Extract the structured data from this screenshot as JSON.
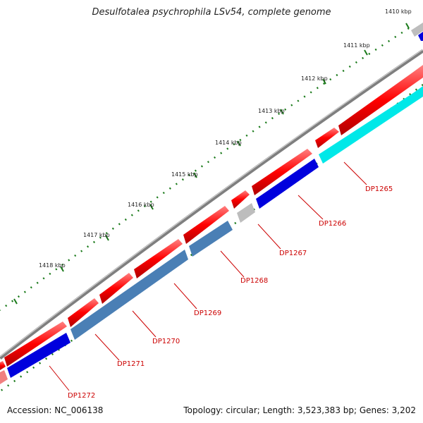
{
  "title": "Desulfotalea psychrophila LSv54, complete genome",
  "accession_label": "Accession: NC_006138",
  "summary_label": "Topology: circular; Length: 3,523,383 bp; Genes: 3,202",
  "colors": {
    "backbone": "#7f7f7f",
    "forward_gene": "#ff0000",
    "reverse_blue": "#0000dd",
    "reverse_steel": "#4a7fb5",
    "reverse_cyan": "#00e8e8",
    "gray_gene": "#bdbdbd",
    "pink_gene": "#f08080",
    "tick": "#1a7a1a",
    "label": "#cc0000"
  },
  "ticks": [
    "1410 kbp",
    "1411 kbp",
    "1412 kbp",
    "1413 kbp",
    "1414 kbp",
    "1415 kbp",
    "1416 kbp",
    "1417 kbp",
    "1418 kbp"
  ],
  "genes": [
    "DP1265",
    "DP1266",
    "DP1267",
    "DP1268",
    "DP1269",
    "DP1270",
    "DP1271",
    "DP1272"
  ]
}
